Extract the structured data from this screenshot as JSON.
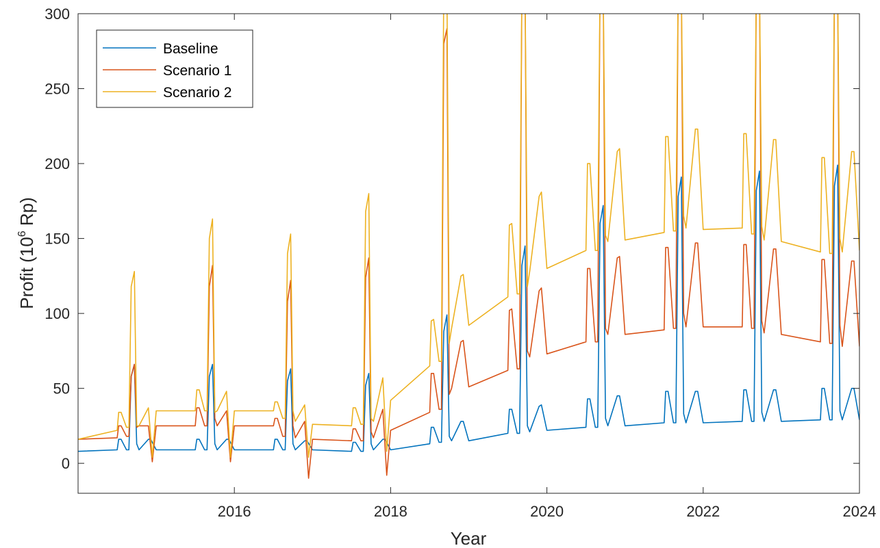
{
  "chart_data": {
    "type": "line",
    "xlabel": "Year",
    "ylabel": "Profit (10",
    "ylabel_sup": "6",
    "ylabel_suffix": " Rp)",
    "xlim": [
      2014.0,
      2024.0
    ],
    "ylim": [
      -20,
      300
    ],
    "x_ticks": [
      2016,
      2018,
      2020,
      2022,
      2024
    ],
    "y_ticks": [
      0,
      50,
      100,
      150,
      200,
      250,
      300
    ],
    "grid": false,
    "legend_placement": "top-left",
    "series": [
      {
        "name": "Baseline",
        "color": "#0072BD",
        "x": [
          2014.0,
          2014.5,
          2014.52,
          2014.55,
          2014.62,
          2014.65,
          2014.68,
          2014.72,
          2014.75,
          2014.78,
          2014.9,
          2014.93,
          2015.0,
          2015.5,
          2015.52,
          2015.55,
          2015.62,
          2015.65,
          2015.68,
          2015.72,
          2015.75,
          2015.78,
          2015.9,
          2015.93,
          2016.0,
          2016.5,
          2016.52,
          2016.55,
          2016.62,
          2016.65,
          2016.68,
          2016.72,
          2016.75,
          2016.78,
          2016.9,
          2016.93,
          2017.0,
          2017.5,
          2017.52,
          2017.55,
          2017.62,
          2017.65,
          2017.68,
          2017.72,
          2017.75,
          2017.78,
          2017.9,
          2017.93,
          2018.0,
          2018.5,
          2018.52,
          2018.55,
          2018.62,
          2018.65,
          2018.68,
          2018.72,
          2018.75,
          2018.78,
          2018.9,
          2018.93,
          2019.0,
          2019.5,
          2019.52,
          2019.55,
          2019.62,
          2019.65,
          2019.68,
          2019.72,
          2019.75,
          2019.78,
          2019.9,
          2019.93,
          2020.0,
          2020.5,
          2020.52,
          2020.55,
          2020.62,
          2020.65,
          2020.68,
          2020.72,
          2020.75,
          2020.78,
          2020.9,
          2020.93,
          2021.0,
          2021.5,
          2021.52,
          2021.55,
          2021.62,
          2021.65,
          2021.68,
          2021.72,
          2021.75,
          2021.78,
          2021.9,
          2021.93,
          2022.0,
          2022.5,
          2022.52,
          2022.55,
          2022.62,
          2022.65,
          2022.68,
          2022.72,
          2022.75,
          2022.78,
          2022.9,
          2022.93,
          2023.0,
          2023.5,
          2023.52,
          2023.55,
          2023.62,
          2023.65,
          2023.68,
          2023.72,
          2023.75,
          2023.78,
          2023.9,
          2023.93,
          2024.0
        ],
        "y": [
          8.0,
          9.0,
          16.0,
          16.0,
          9.0,
          9.0,
          58.0,
          66.0,
          13.0,
          9.0,
          16.0,
          16.0,
          9.0,
          9.0,
          16.0,
          16.0,
          9.0,
          9.0,
          58.0,
          66.0,
          13.0,
          9.0,
          16.0,
          16.0,
          9.0,
          9.0,
          16.0,
          16.0,
          9.0,
          9.0,
          55.0,
          63.0,
          13.0,
          9.0,
          15.0,
          15.0,
          9.0,
          8.0,
          14.0,
          14.0,
          8.0,
          8.0,
          52.0,
          60.0,
          13.0,
          9.0,
          16.0,
          16.0,
          9.0,
          13.0,
          24.0,
          24.0,
          14.0,
          14.0,
          88.0,
          99.0,
          18.0,
          15.0,
          28.0,
          28.0,
          15.0,
          20.0,
          36.0,
          36.0,
          20.0,
          20.0,
          132.0,
          145.0,
          25.0,
          21.0,
          38.0,
          39.0,
          22.0,
          24.0,
          43.0,
          43.0,
          24.0,
          24.0,
          160.0,
          172.0,
          30.0,
          25.0,
          45.0,
          45.0,
          25.0,
          27.0,
          48.0,
          48.0,
          27.0,
          27.0,
          178.0,
          191.0,
          33.0,
          27.0,
          48.0,
          48.0,
          27.0,
          28.0,
          49.0,
          49.0,
          28.0,
          28.0,
          182.0,
          195.0,
          34.0,
          28.0,
          49.0,
          49.0,
          28.0,
          29.0,
          50.0,
          50.0,
          29.0,
          29.0,
          185.0,
          199.0,
          35.0,
          29.0,
          50.0,
          50.0,
          29.0
        ]
      },
      {
        "name": "Scenario 1",
        "color": "#D95319",
        "x": [
          2014.0,
          2014.5,
          2014.52,
          2014.55,
          2014.62,
          2014.65,
          2014.68,
          2014.72,
          2014.75,
          2014.78,
          2014.9,
          2014.95,
          2015.0,
          2015.5,
          2015.52,
          2015.55,
          2015.62,
          2015.65,
          2015.68,
          2015.72,
          2015.75,
          2015.78,
          2015.9,
          2015.95,
          2016.0,
          2016.5,
          2016.52,
          2016.55,
          2016.62,
          2016.65,
          2016.68,
          2016.72,
          2016.75,
          2016.78,
          2016.9,
          2016.95,
          2017.0,
          2017.5,
          2017.52,
          2017.55,
          2017.62,
          2017.65,
          2017.68,
          2017.72,
          2017.75,
          2017.78,
          2017.9,
          2017.95,
          2018.0,
          2018.5,
          2018.52,
          2018.55,
          2018.62,
          2018.65,
          2018.68,
          2018.72,
          2018.75,
          2018.78,
          2018.9,
          2018.93,
          2019.0,
          2019.5,
          2019.52,
          2019.55,
          2019.62,
          2019.65,
          2019.68,
          2019.72,
          2019.75,
          2019.78,
          2019.9,
          2019.93,
          2020.0,
          2020.5,
          2020.52,
          2020.55,
          2020.62,
          2020.65,
          2020.68,
          2020.72,
          2020.75,
          2020.78,
          2020.9,
          2020.93,
          2021.0,
          2021.5,
          2021.52,
          2021.55,
          2021.62,
          2021.65,
          2021.68,
          2021.72,
          2021.75,
          2021.78,
          2021.9,
          2021.93,
          2022.0,
          2022.5,
          2022.52,
          2022.55,
          2022.62,
          2022.65,
          2022.68,
          2022.72,
          2022.75,
          2022.78,
          2022.9,
          2022.93,
          2023.0,
          2023.5,
          2023.52,
          2023.55,
          2023.62,
          2023.65,
          2023.68,
          2023.72,
          2023.75,
          2023.78,
          2023.9,
          2023.93,
          2024.0
        ],
        "y": [
          16.0,
          17.0,
          25.0,
          25.0,
          18.0,
          18.0,
          58.0,
          66.0,
          24.0,
          25.0,
          25.0,
          1.0,
          25.0,
          25.0,
          37.0,
          37.0,
          25.0,
          25.0,
          118.0,
          132.0,
          30.0,
          25.0,
          35.0,
          1.0,
          25.0,
          25.0,
          30.0,
          30.0,
          18.0,
          18.0,
          108.0,
          122.0,
          25.0,
          17.0,
          28.0,
          -10.0,
          16.0,
          15.0,
          23.0,
          23.0,
          15.0,
          15.0,
          124.0,
          137.0,
          21.0,
          17.0,
          36.0,
          -8.0,
          22.0,
          34.0,
          60.0,
          60.0,
          36.0,
          36.0,
          280.0,
          290.0,
          46.0,
          50.0,
          81.0,
          82.0,
          51.0,
          62.0,
          102.0,
          103.0,
          63.0,
          63.0,
          320.0,
          320.0,
          75.0,
          71.0,
          115.0,
          117.0,
          73.0,
          81.0,
          130.0,
          130.0,
          81.0,
          81.0,
          320.0,
          320.0,
          90.0,
          86.0,
          137.0,
          138.0,
          86.0,
          89.0,
          144.0,
          144.0,
          90.0,
          90.0,
          320.0,
          320.0,
          100.0,
          91.0,
          147.0,
          147.0,
          91.0,
          91.0,
          146.0,
          146.0,
          90.0,
          90.0,
          320.0,
          320.0,
          95.0,
          87.0,
          143.0,
          143.0,
          86.0,
          81.0,
          136.0,
          136.0,
          80.0,
          80.0,
          320.0,
          320.0,
          92.0,
          78.0,
          135.0,
          135.0,
          78.0
        ]
      },
      {
        "name": "Scenario 2",
        "color": "#EDB120",
        "x": [
          2014.0,
          2014.5,
          2014.52,
          2014.55,
          2014.62,
          2014.65,
          2014.68,
          2014.72,
          2014.75,
          2014.78,
          2014.9,
          2014.95,
          2015.0,
          2015.5,
          2015.52,
          2015.55,
          2015.62,
          2015.65,
          2015.68,
          2015.72,
          2015.75,
          2015.78,
          2015.9,
          2015.95,
          2016.0,
          2016.5,
          2016.52,
          2016.55,
          2016.62,
          2016.65,
          2016.68,
          2016.72,
          2016.75,
          2016.78,
          2016.9,
          2016.95,
          2017.0,
          2017.5,
          2017.52,
          2017.55,
          2017.62,
          2017.65,
          2017.68,
          2017.72,
          2017.75,
          2017.78,
          2017.9,
          2017.95,
          2018.0,
          2018.5,
          2018.52,
          2018.55,
          2018.62,
          2018.65,
          2018.68,
          2018.72,
          2018.75,
          2018.78,
          2018.9,
          2018.93,
          2019.0,
          2019.5,
          2019.52,
          2019.55,
          2019.62,
          2019.65,
          2019.68,
          2019.72,
          2019.75,
          2019.78,
          2019.9,
          2019.93,
          2020.0,
          2020.5,
          2020.52,
          2020.55,
          2020.62,
          2020.65,
          2020.68,
          2020.72,
          2020.75,
          2020.78,
          2020.9,
          2020.93,
          2021.0,
          2021.5,
          2021.52,
          2021.55,
          2021.62,
          2021.65,
          2021.68,
          2021.72,
          2021.75,
          2021.78,
          2021.9,
          2021.93,
          2022.0,
          2022.5,
          2022.52,
          2022.55,
          2022.62,
          2022.65,
          2022.68,
          2022.72,
          2022.75,
          2022.78,
          2022.9,
          2022.93,
          2023.0,
          2023.5,
          2023.52,
          2023.55,
          2023.62,
          2023.65,
          2023.68,
          2023.72,
          2023.75,
          2023.78,
          2023.9,
          2023.93,
          2024.0
        ],
        "y": [
          16.0,
          22.0,
          34.0,
          34.0,
          24.0,
          24.0,
          118.0,
          128.0,
          25.0,
          25.0,
          37.0,
          4.0,
          35.0,
          35.0,
          49.0,
          49.0,
          35.0,
          35.0,
          150.0,
          163.0,
          34.0,
          35.0,
          48.0,
          4.0,
          35.0,
          35.0,
          41.0,
          41.0,
          30.0,
          30.0,
          140.0,
          153.0,
          35.0,
          28.0,
          39.0,
          4.0,
          26.0,
          25.0,
          37.0,
          37.0,
          26.0,
          26.0,
          168.0,
          180.0,
          30.0,
          28.0,
          57.0,
          8.0,
          42.0,
          65.0,
          95.0,
          96.0,
          68.0,
          68.0,
          320.0,
          320.0,
          80.0,
          90.0,
          125.0,
          126.0,
          92.0,
          111.0,
          159.0,
          160.0,
          113.0,
          113.0,
          320.0,
          320.0,
          118.0,
          128.0,
          178.0,
          181.0,
          130.0,
          142.0,
          200.0,
          200.0,
          142.0,
          142.0,
          320.0,
          320.0,
          152.0,
          148.0,
          208.0,
          210.0,
          149.0,
          154.0,
          218.0,
          218.0,
          155.0,
          155.0,
          320.0,
          320.0,
          165.0,
          157.0,
          223.0,
          223.0,
          156.0,
          157.0,
          220.0,
          220.0,
          153.0,
          153.0,
          320.0,
          320.0,
          158.0,
          149.0,
          216.0,
          216.0,
          148.0,
          141.0,
          204.0,
          204.0,
          140.0,
          140.0,
          320.0,
          320.0,
          150.0,
          141.0,
          208.0,
          208.0,
          142.0
        ]
      }
    ]
  }
}
